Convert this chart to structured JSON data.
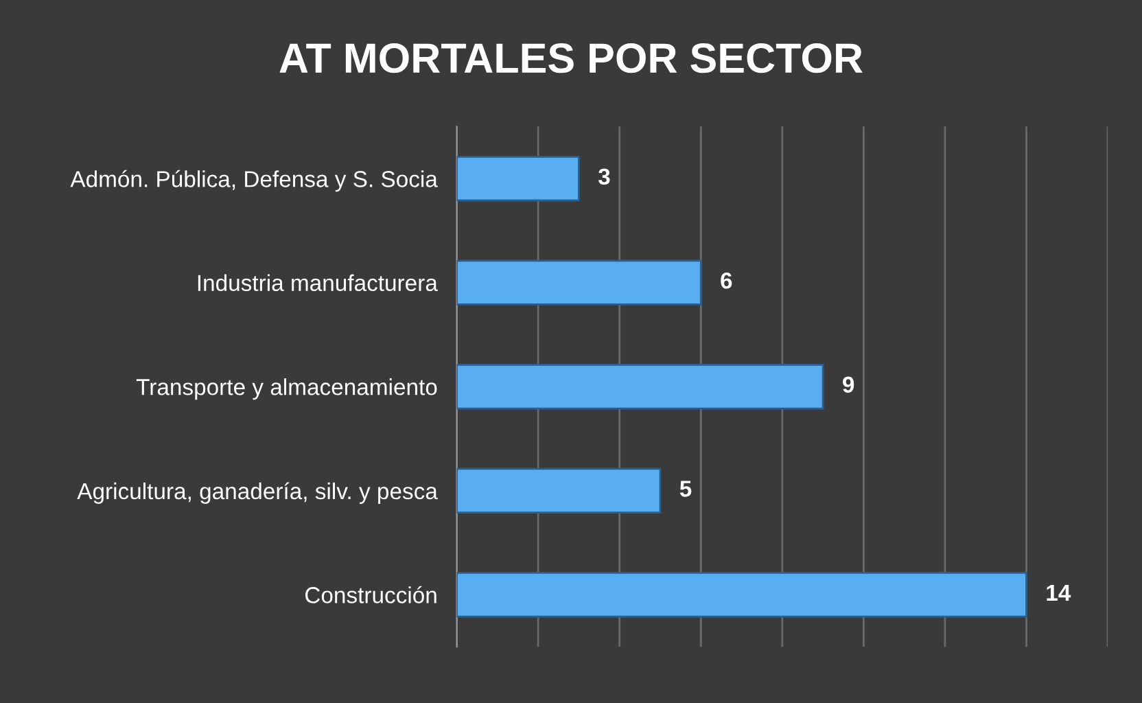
{
  "chart_data": {
    "type": "bar",
    "orientation": "horizontal",
    "title": "AT MORTALES POR SECTOR",
    "categories": [
      "Admón. Pública, Defensa y S. Socia",
      "Industria manufacturera",
      "Transporte y almacenamiento",
      "Agricultura, ganadería, silv. y pesca",
      "Construcción"
    ],
    "values": [
      3,
      6,
      9,
      5,
      14
    ],
    "color": "#58aef0",
    "xlim": [
      0,
      16
    ],
    "xticks": [
      {
        "value": 0,
        "label": null
      },
      {
        "value": 2,
        "label": null
      },
      {
        "value": 4,
        "label": null
      },
      {
        "value": 6,
        "label": null
      },
      {
        "value": 8,
        "label": null
      },
      {
        "value": 10,
        "label": null
      },
      {
        "value": 12,
        "label": null
      },
      {
        "value": 14,
        "label": null
      },
      {
        "value": 16,
        "label": null
      }
    ],
    "grid": "x",
    "data_labels": true,
    "tick_labels": "y",
    "legend": false
  }
}
